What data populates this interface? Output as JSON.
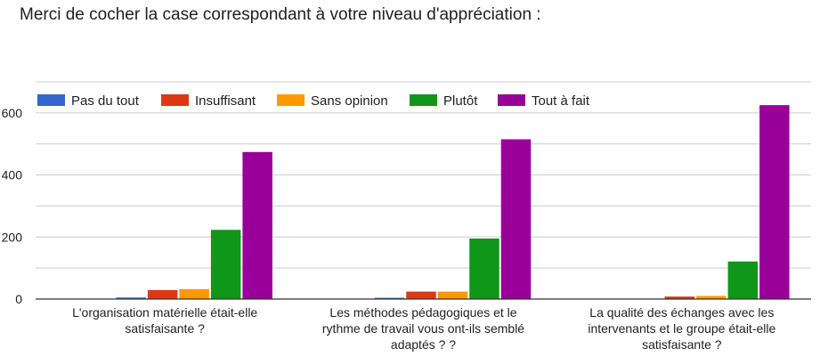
{
  "header": {
    "question": "Merci de cocher la case correspondant à votre niveau d'appréciation :"
  },
  "chart_data": {
    "type": "bar",
    "title": "",
    "xlabel": "",
    "ylabel": "",
    "ylim": [
      0,
      700
    ],
    "yticks": [
      0,
      200,
      400,
      600
    ],
    "grid": true,
    "legend_position": "top-left",
    "categories": [
      [
        "L'organisation matérielle était-elle",
        "satisfaisante ?"
      ],
      [
        "Les méthodes pédagogiques et le",
        "rythme de travail vous ont-ils semblé",
        "adaptés ? ?"
      ],
      [
        "La qualité des échanges avec les",
        "intervenants et le groupe était-elle",
        "satisfaisante ?"
      ]
    ],
    "series": [
      {
        "name": "Pas du tout",
        "color": "#3366cc",
        "values": [
          5,
          4,
          1
        ]
      },
      {
        "name": "Insuffisant",
        "color": "#dc3912",
        "values": [
          29,
          24,
          8
        ]
      },
      {
        "name": "Sans opinion",
        "color": "#ff9900",
        "values": [
          32,
          24,
          10
        ]
      },
      {
        "name": "Plutôt",
        "color": "#109618",
        "values": [
          223,
          195,
          121
        ]
      },
      {
        "name": "Tout à fait",
        "color": "#990099",
        "values": [
          474,
          515,
          625
        ]
      }
    ]
  }
}
